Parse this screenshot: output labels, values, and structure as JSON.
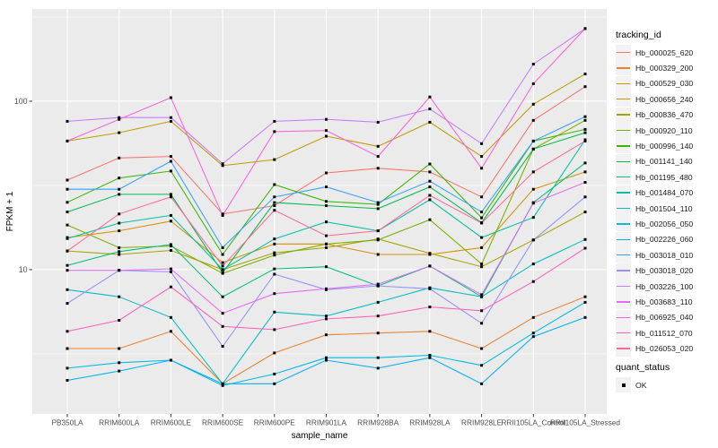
{
  "axes": {
    "ylabel": "FPKM + 1",
    "xlabel": "sample_name",
    "ytick_labels": [
      "100",
      "10"
    ]
  },
  "legend": {
    "tracking_title": "tracking_id",
    "quant_title": "quant_status",
    "quant_items": [
      {
        "label": "OK",
        "marker": "square",
        "color": "#000000"
      }
    ]
  },
  "chart_data": {
    "type": "line",
    "title": "",
    "xlabel": "sample_name",
    "ylabel": "FPKM + 1",
    "yscale": "log10",
    "ylim": [
      1.39,
      353
    ],
    "yticks": [
      10,
      100
    ],
    "minor_yticks": [
      3.162,
      31.62,
      316.2
    ],
    "grid": true,
    "legend_position": "right",
    "panel_bg": "#EBEBEB",
    "grid_color": "#FFFFFF",
    "point_marker": "square",
    "point_color": "#000000",
    "categories": [
      "PB350LA",
      "RRIM600LA",
      "RRIM600LE",
      "RRIM600SE",
      "RRIM600PE",
      "RRIM901LA",
      "RRIM928BA",
      "RRIM928LA",
      "RRIM928LE",
      "RRII105LA_Control",
      "RRII105LA_Stressed"
    ],
    "series": [
      {
        "name": "Hb_000025_620",
        "color": "#F8766D",
        "values": [
          34,
          46,
          47,
          21.4,
          24,
          37.5,
          40,
          38,
          27,
          77,
          122
        ]
      },
      {
        "name": "Hb_000329_200",
        "color": "#EA8331",
        "values": [
          3.4,
          3.4,
          4.3,
          2.1,
          3.2,
          4.1,
          4.2,
          4.3,
          3.4,
          5.2,
          6.9
        ]
      },
      {
        "name": "Hb_000529_030",
        "color": "#D89000",
        "values": [
          15.5,
          17,
          19.4,
          11,
          14.2,
          14.2,
          12.3,
          12.3,
          13.5,
          30,
          38
        ]
      },
      {
        "name": "Hb_000656_240",
        "color": "#C09B00",
        "values": [
          58,
          65,
          76,
          41.5,
          45,
          62,
          54,
          75,
          47,
          96,
          145
        ]
      },
      {
        "name": "Hb_000836_470",
        "color": "#A3A500",
        "values": [
          12.9,
          12.3,
          13,
          10,
          12.6,
          13.5,
          15.2,
          12.5,
          10.4,
          15,
          22
        ]
      },
      {
        "name": "Hb_000920_110",
        "color": "#7CAE00",
        "values": [
          18.4,
          13.5,
          13.8,
          9.5,
          12.2,
          14.2,
          15,
          19.8,
          10.8,
          52,
          77
        ]
      },
      {
        "name": "Hb_000996_140",
        "color": "#39B600",
        "values": [
          25.1,
          35,
          38.5,
          12.3,
          32,
          25.4,
          24.4,
          42.4,
          20.3,
          58,
          68
        ]
      },
      {
        "name": "Hb_001141_140",
        "color": "#00BB4E",
        "values": [
          22,
          28,
          28,
          9.6,
          25,
          24,
          23,
          31,
          19,
          52,
          65
        ]
      },
      {
        "name": "Hb_001195_480",
        "color": "#00BF7D",
        "values": [
          10.6,
          12.8,
          14.1,
          6.9,
          10.1,
          10.4,
          8,
          10.5,
          6.9,
          25,
          43
        ]
      },
      {
        "name": "Hb_001484_070",
        "color": "#00C1A3",
        "values": [
          15.3,
          18.9,
          21,
          10,
          15.2,
          19.2,
          17,
          26,
          15.5,
          20.4,
          59
        ]
      },
      {
        "name": "Hb_001504_110",
        "color": "#00BFC4",
        "values": [
          7.6,
          6.9,
          5.2,
          2.1,
          5.6,
          5.3,
          6.4,
          7.8,
          6.9,
          10.8,
          15.1
        ]
      },
      {
        "name": "Hb_002056_050",
        "color": "#00BAE0",
        "values": [
          2.6,
          2.8,
          2.9,
          2.05,
          2.4,
          3,
          3,
          3.1,
          2.7,
          4.2,
          6.4
        ]
      },
      {
        "name": "Hb_002226_060",
        "color": "#00B0F6",
        "values": [
          2.2,
          2.5,
          2.9,
          2.1,
          2.1,
          2.9,
          2.6,
          3,
          2.1,
          4,
          5.2
        ]
      },
      {
        "name": "Hb_003018_010",
        "color": "#35A2FF",
        "values": [
          30,
          30,
          44,
          13.5,
          27,
          31,
          25,
          33.5,
          22,
          58,
          81
        ]
      },
      {
        "name": "Hb_003018_020",
        "color": "#9590FF",
        "values": [
          6.3,
          9.9,
          9.7,
          3.5,
          9.4,
          7.6,
          8,
          7.7,
          4.8,
          15,
          27
        ]
      },
      {
        "name": "Hb_003226_100",
        "color": "#C77CFF",
        "values": [
          76,
          80,
          80,
          42.5,
          76,
          78,
          75,
          90,
          56,
          166,
          270
        ]
      },
      {
        "name": "Hb_003683_110",
        "color": "#E76BF3",
        "values": [
          9.9,
          9.9,
          10.1,
          5.5,
          7.2,
          7.7,
          8.2,
          10.5,
          7.1,
          24.8,
          33
        ]
      },
      {
        "name": "Hb_006925_040",
        "color": "#FA62DB",
        "values": [
          58,
          78,
          105,
          21,
          66,
          67,
          47,
          106,
          40,
          127,
          270
        ]
      },
      {
        "name": "Hb_011512_070",
        "color": "#FF62BC",
        "values": [
          4.3,
          5,
          7.9,
          4.6,
          4.4,
          5.1,
          5.3,
          6,
          5.7,
          8.5,
          13.4
        ]
      },
      {
        "name": "Hb_026053_020",
        "color": "#FF6A98",
        "values": [
          12.9,
          21.4,
          27,
          10.5,
          22.5,
          15.9,
          17,
          27.6,
          18.9,
          38,
          58
        ]
      }
    ]
  }
}
